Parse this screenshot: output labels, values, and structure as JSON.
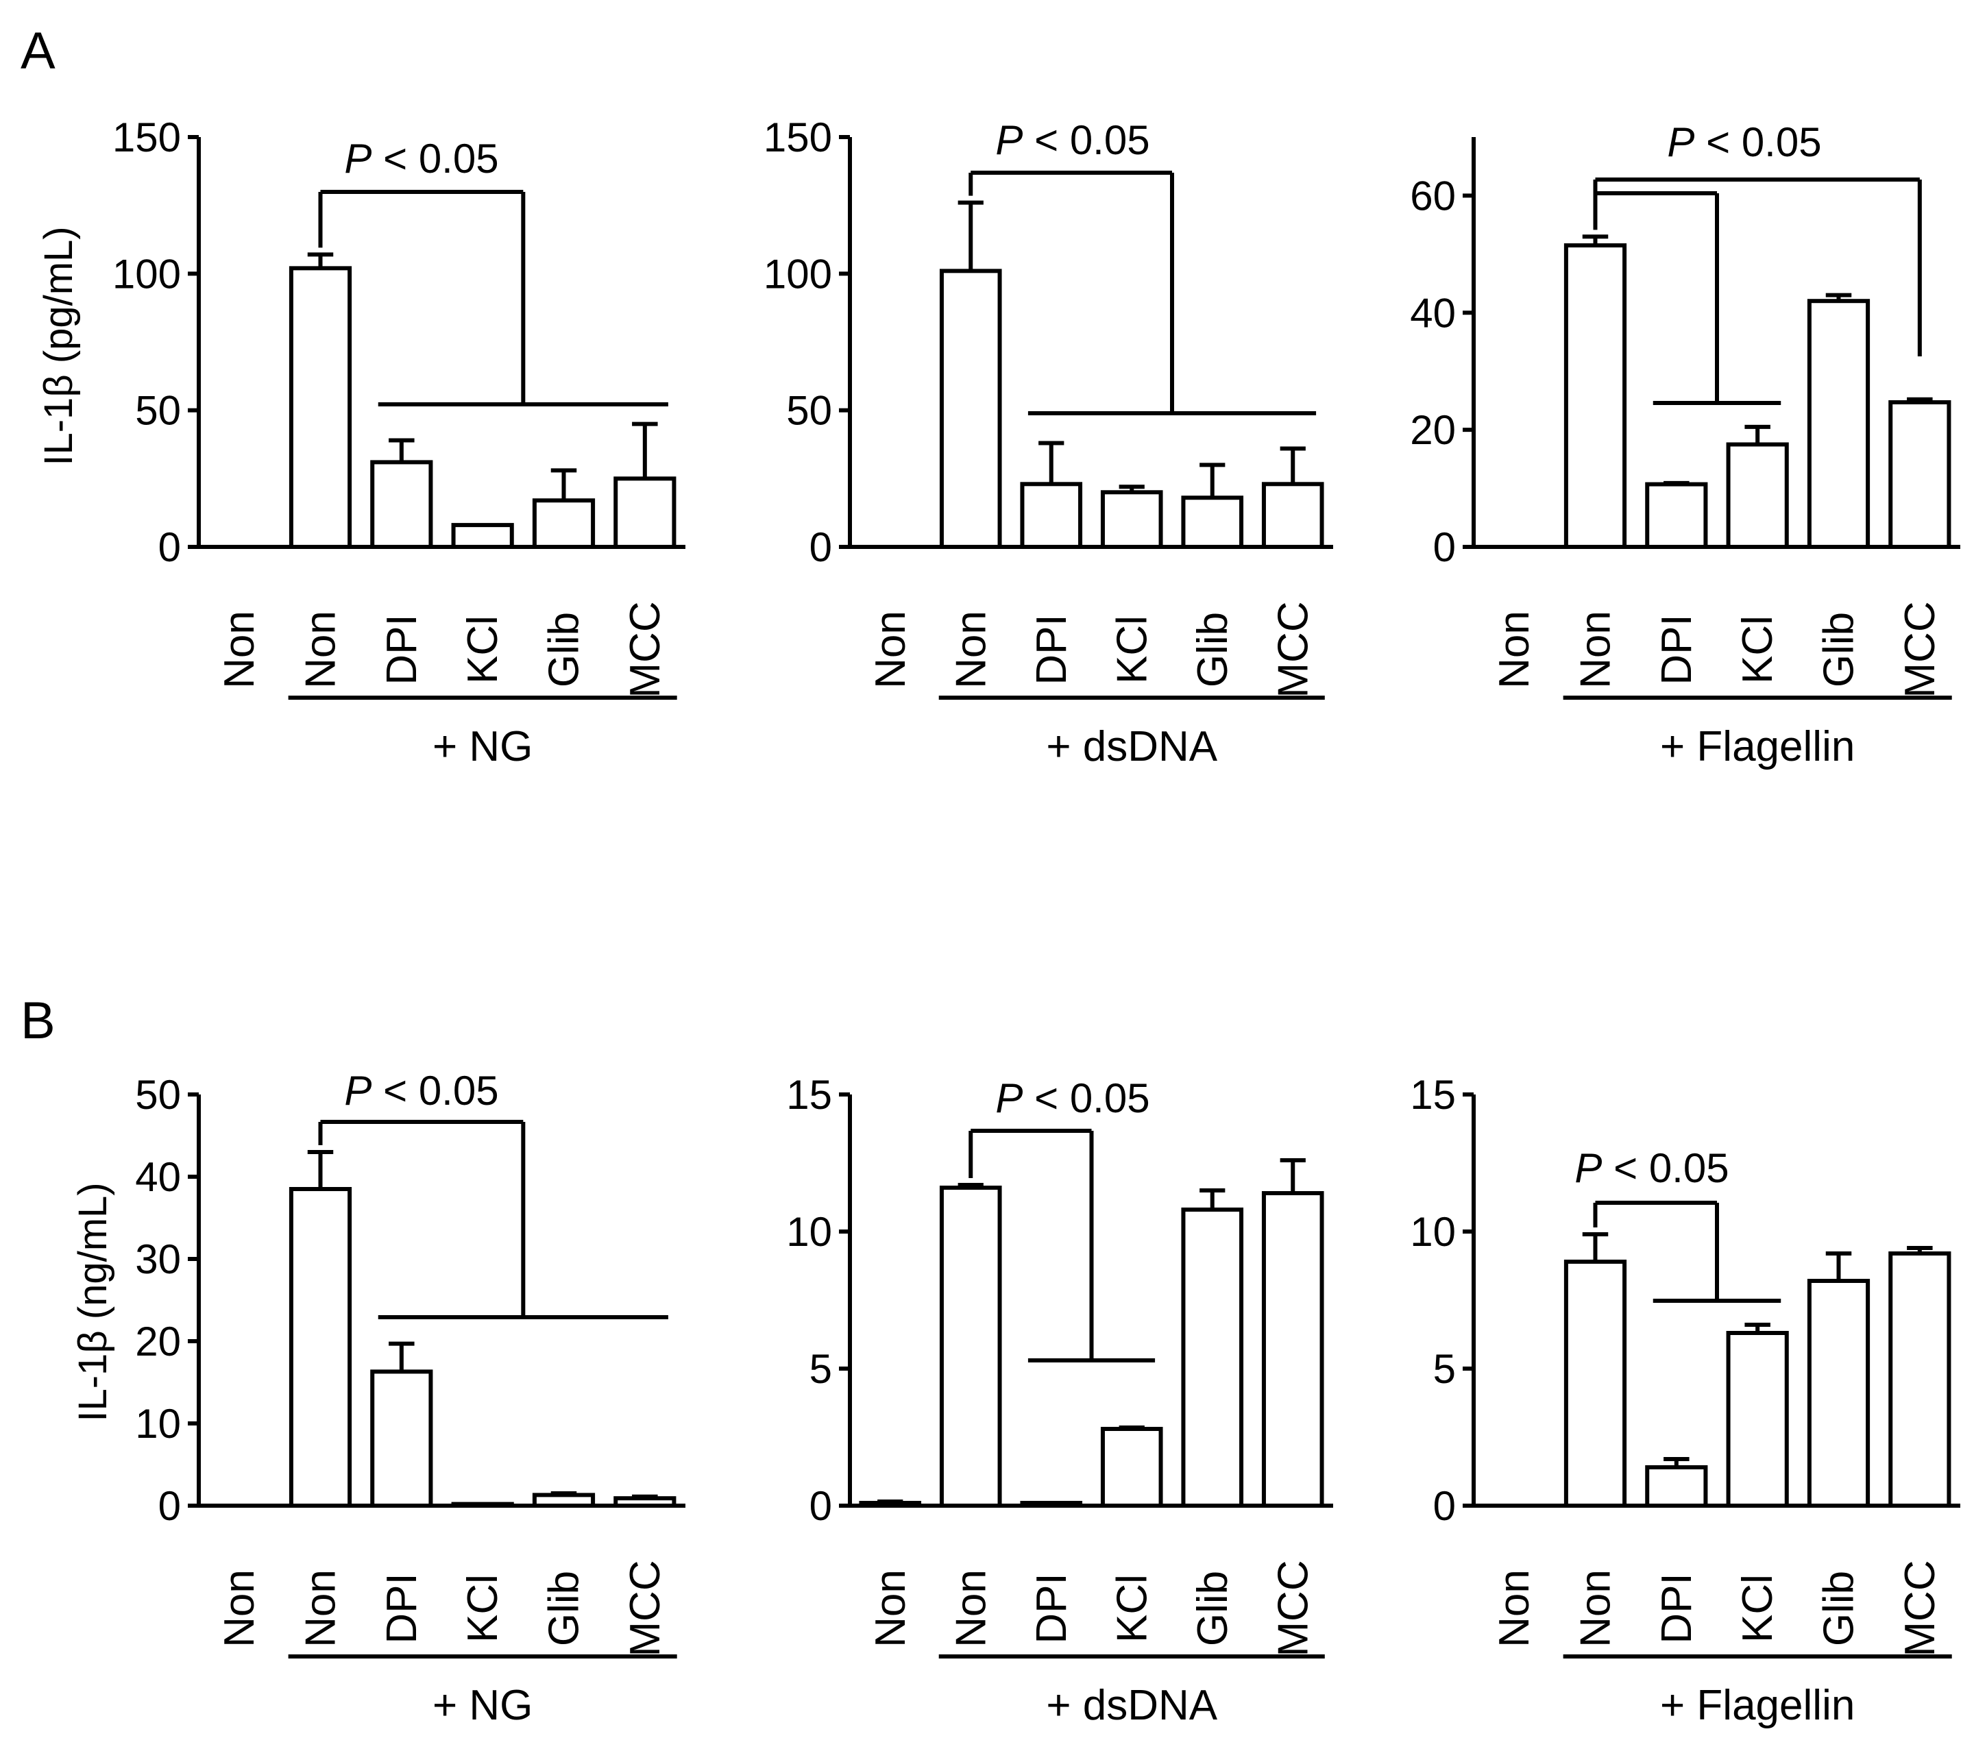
{
  "figure": {
    "panels": [
      {
        "letter": "A",
        "ylabel": "IL-1β (pg/mL)"
      },
      {
        "letter": "B",
        "ylabel": "IL-1β (ng/mL)"
      }
    ]
  },
  "colors": {
    "treated_control_bar": "#000000",
    "inhibitor_bar": "#ffffff",
    "untreated_bar": "#ffffff"
  },
  "chart_data": [
    {
      "type": "bar",
      "panel": "A",
      "title": "",
      "group_label": "+ NG",
      "xlabel": "",
      "ylabel": "IL-1β (pg/mL)",
      "categories": [
        "Non",
        "Non",
        "DPI",
        "KCl",
        "Glib",
        "MCC"
      ],
      "values": [
        0,
        102,
        31,
        8,
        17,
        25
      ],
      "errors": [
        0,
        5,
        8,
        0,
        11,
        20
      ],
      "filled": [
        false,
        true,
        false,
        false,
        false,
        false
      ],
      "ylim": [
        0,
        150
      ],
      "yticks": [
        0,
        50,
        100,
        150
      ],
      "significance": [
        {
          "label": "P < 0.05",
          "from": 1,
          "to": [
            2,
            5
          ]
        }
      ]
    },
    {
      "type": "bar",
      "panel": "A",
      "title": "",
      "group_label": "+ dsDNA",
      "xlabel": "",
      "ylabel": "",
      "categories": [
        "Non",
        "Non",
        "DPI",
        "KCl",
        "Glib",
        "MCC"
      ],
      "values": [
        0,
        101,
        23,
        20,
        18,
        23
      ],
      "errors": [
        0,
        25,
        15,
        2,
        12,
        13
      ],
      "filled": [
        false,
        true,
        false,
        false,
        false,
        false
      ],
      "ylim": [
        0,
        150
      ],
      "yticks": [
        0,
        50,
        100,
        150
      ],
      "significance": [
        {
          "label": "P < 0.05",
          "from": 1,
          "to": [
            2,
            5
          ]
        }
      ]
    },
    {
      "type": "bar",
      "panel": "A",
      "title": "",
      "group_label": "+ Flagellin",
      "xlabel": "",
      "ylabel": "",
      "categories": [
        "Non",
        "Non",
        "DPI",
        "KCl",
        "Glib",
        "MCC"
      ],
      "values": [
        0,
        51.5,
        10.7,
        17.5,
        42,
        24.7
      ],
      "errors": [
        0,
        1.5,
        0.2,
        3,
        1,
        0.5
      ],
      "filled": [
        false,
        true,
        false,
        false,
        false,
        false
      ],
      "ylim": [
        0,
        70
      ],
      "yticks": [
        0,
        20,
        40,
        60
      ],
      "significance": [
        {
          "label": "P < 0.05",
          "from": 1,
          "to": [
            2,
            3
          ]
        },
        {
          "label": "",
          "from": 1,
          "to": [
            5,
            5
          ]
        }
      ]
    },
    {
      "type": "bar",
      "panel": "B",
      "title": "",
      "group_label": "+ NG",
      "xlabel": "",
      "ylabel": "IL-1β (ng/mL)",
      "categories": [
        "Non",
        "Non",
        "DPI",
        "KCl",
        "Glib",
        "MCC"
      ],
      "values": [
        0,
        38.5,
        16.3,
        0.2,
        1.3,
        0.9
      ],
      "errors": [
        0,
        4.5,
        3.4,
        0,
        0.2,
        0.2
      ],
      "filled": [
        false,
        true,
        false,
        false,
        false,
        false
      ],
      "ylim": [
        0,
        50
      ],
      "yticks": [
        0,
        10,
        20,
        30,
        40,
        50
      ],
      "significance": [
        {
          "label": "P < 0.05",
          "from": 1,
          "to": [
            2,
            5
          ]
        }
      ]
    },
    {
      "type": "bar",
      "panel": "B",
      "title": "",
      "group_label": "+ dsDNA",
      "xlabel": "",
      "ylabel": "",
      "categories": [
        "Non",
        "Non",
        "DPI",
        "KCl",
        "Glib",
        "MCC"
      ],
      "values": [
        0.1,
        11.6,
        0.1,
        2.8,
        10.8,
        11.4
      ],
      "errors": [
        0.05,
        0.1,
        0,
        0.05,
        0.7,
        1.2
      ],
      "filled": [
        false,
        true,
        false,
        false,
        false,
        false
      ],
      "ylim": [
        0,
        15
      ],
      "yticks": [
        0,
        5,
        10,
        15
      ],
      "significance": [
        {
          "label": "P < 0.05",
          "from": 1,
          "to": [
            2,
            3
          ]
        }
      ]
    },
    {
      "type": "bar",
      "panel": "B",
      "title": "",
      "group_label": "+ Flagellin",
      "xlabel": "",
      "ylabel": "",
      "categories": [
        "Non",
        "Non",
        "DPI",
        "KCl",
        "Glib",
        "MCC"
      ],
      "values": [
        0,
        8.9,
        1.4,
        6.3,
        8.2,
        9.2
      ],
      "errors": [
        0,
        1.0,
        0.3,
        0.3,
        1.0,
        0.2
      ],
      "filled": [
        false,
        true,
        false,
        false,
        false,
        false
      ],
      "ylim": [
        0,
        15
      ],
      "yticks": [
        0,
        5,
        10,
        15
      ],
      "significance": [
        {
          "label": "P < 0.05",
          "from": 1,
          "to": [
            2,
            3
          ]
        }
      ]
    }
  ]
}
